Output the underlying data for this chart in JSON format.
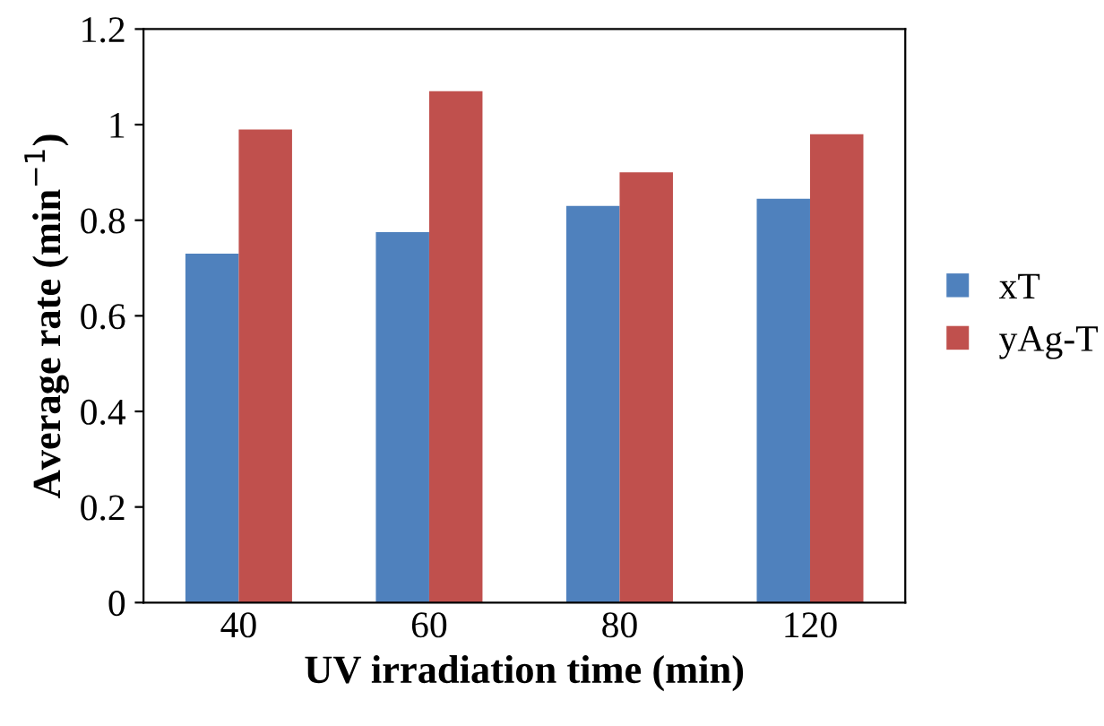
{
  "chart_data": {
    "type": "bar",
    "xlabel": "UV irradiation time (min)",
    "ylabel": "Average rate (min$^{−1}$)",
    "categories": [
      "40",
      "60",
      "80",
      "120"
    ],
    "series": [
      {
        "name": "xT",
        "color": "#4f81bd",
        "values": [
          0.73,
          0.775,
          0.83,
          0.845
        ]
      },
      {
        "name": "yAg-T",
        "color": "#c0504d",
        "values": [
          0.99,
          1.07,
          0.9,
          0.98
        ]
      }
    ],
    "ylim": [
      0,
      1.2
    ],
    "yticks": [
      0,
      0.2,
      0.4,
      0.6,
      0.8,
      1,
      1.2
    ],
    "grid": false,
    "legend": "right"
  }
}
